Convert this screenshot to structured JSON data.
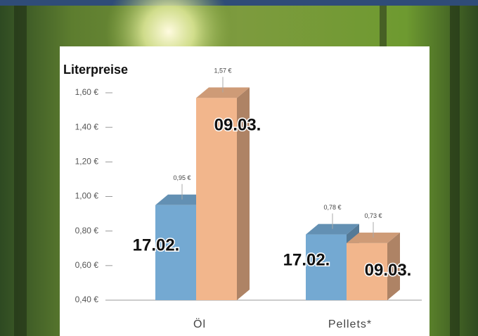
{
  "chart_data": {
    "type": "bar3d",
    "title": "Literpreise",
    "categories": [
      "Öl",
      "Pellets*"
    ],
    "series": [
      {
        "name": "17.02.",
        "color": "#74a9d2",
        "values": [
          0.95,
          0.78
        ],
        "value_labels": [
          "0,95 €",
          "0,78 €"
        ]
      },
      {
        "name": "09.03.",
        "color": "#f2b68c",
        "values": [
          1.57,
          0.73
        ],
        "value_labels": [
          "1,57 €",
          "0,73 €"
        ]
      }
    ],
    "ylim": [
      0.4,
      1.7
    ],
    "yticks": [
      {
        "value": 0.4,
        "label": "0,40 €"
      },
      {
        "value": 0.6,
        "label": "0,60 €"
      },
      {
        "value": 0.8,
        "label": "0,80 €"
      },
      {
        "value": 1.0,
        "label": "1,00 €"
      },
      {
        "value": 1.2,
        "label": "1,20 €"
      },
      {
        "value": 1.4,
        "label": "1,40 €"
      },
      {
        "value": 1.6,
        "label": "1,60 €"
      }
    ],
    "grid": false
  }
}
